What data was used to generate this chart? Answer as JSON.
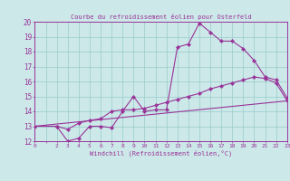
{
  "title": "Courbe du refroidissement éolien pour Osterfeld",
  "xlabel": "Windchill (Refroidissement éolien,°C)",
  "bg_color": "#cce8e8",
  "line_color": "#993399",
  "grid_color": "#99cccc",
  "xmin": 0,
  "xmax": 23,
  "ymin": 12,
  "ymax": 20,
  "line1_x": [
    0,
    2,
    3,
    4,
    5,
    6,
    7,
    8,
    9,
    10,
    11,
    12,
    13,
    14,
    15,
    16,
    17,
    18,
    19,
    20,
    21,
    22,
    23
  ],
  "line1_y": [
    13.0,
    13.0,
    12.0,
    12.2,
    13.0,
    13.0,
    12.9,
    14.0,
    15.0,
    14.0,
    14.1,
    14.1,
    18.3,
    18.5,
    19.9,
    19.3,
    18.7,
    18.7,
    18.2,
    17.4,
    16.3,
    16.1,
    14.9
  ],
  "line2_x": [
    0,
    2,
    3,
    4,
    5,
    6,
    7,
    8,
    9,
    10,
    11,
    12,
    13,
    14,
    15,
    16,
    17,
    18,
    19,
    20,
    21,
    22,
    23
  ],
  "line2_y": [
    13.0,
    13.0,
    12.8,
    13.2,
    13.4,
    13.5,
    14.0,
    14.1,
    14.1,
    14.2,
    14.4,
    14.6,
    14.8,
    15.0,
    15.2,
    15.5,
    15.7,
    15.9,
    16.1,
    16.3,
    16.2,
    15.9,
    14.7
  ],
  "line3_x": [
    0,
    23
  ],
  "line3_y": [
    13.0,
    14.7
  ],
  "yticks": [
    12,
    13,
    14,
    15,
    16,
    17,
    18,
    19,
    20
  ],
  "xtick_labels": [
    "0",
    "",
    "2",
    "3",
    "4",
    "5",
    "6",
    "7",
    "8",
    "9",
    "10",
    "11",
    "12",
    "13",
    "14",
    "15",
    "16",
    "17",
    "18",
    "19",
    "20",
    "21",
    "22",
    "23"
  ],
  "xtick_pos": [
    0,
    1,
    2,
    3,
    4,
    5,
    6,
    7,
    8,
    9,
    10,
    11,
    12,
    13,
    14,
    15,
    16,
    17,
    18,
    19,
    20,
    21,
    22,
    23
  ]
}
